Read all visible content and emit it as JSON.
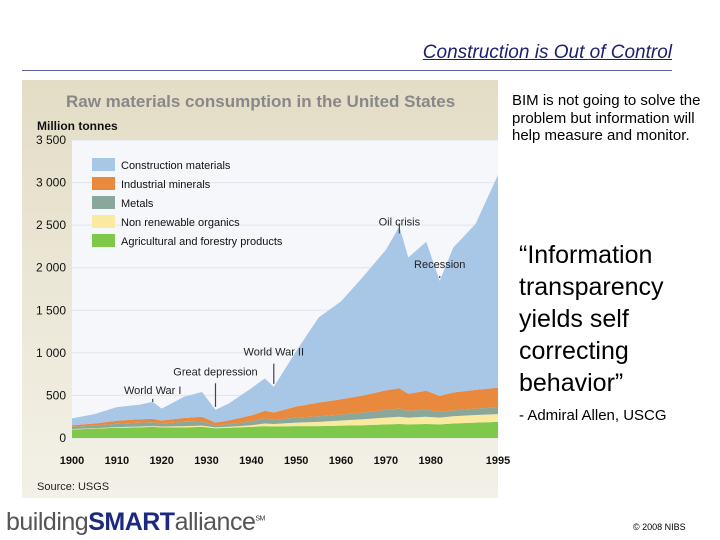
{
  "slide": {
    "title": "Construction is Out of Control",
    "bim_text": "BIM is not going to solve the problem but information will help measure and monitor.",
    "quote_lines": [
      "“Information",
      "transparency",
      "yields self",
      "correcting",
      "behavior”"
    ],
    "attribution": "- Admiral Allen, USCG",
    "logo": {
      "part1": "building",
      "part2": "SMART",
      "part3": "alliance",
      "tm": "SM"
    },
    "copyright": "© 2008 NIBS"
  },
  "chart_data": {
    "type": "area",
    "stacked": true,
    "title": "Raw materials consumption in the United States",
    "ylabel": "Million tonnes",
    "source": "Source: USGS",
    "ylim": [
      0,
      3500
    ],
    "xlim": [
      1900,
      1995
    ],
    "yticks": [
      "3 500",
      "3 000",
      "2 500",
      "2 000",
      "1 500",
      "1 000",
      "500",
      "0"
    ],
    "yticks_values": [
      3500,
      3000,
      2500,
      2000,
      1500,
      1000,
      500,
      0
    ],
    "xticks": [
      "1900",
      "1910",
      "1920",
      "1930",
      "1940",
      "1950",
      "1960",
      "1970",
      "1980",
      "1995"
    ],
    "xticks_values": [
      1900,
      1910,
      1920,
      1930,
      1940,
      1950,
      1960,
      1970,
      1980,
      1995
    ],
    "x": [
      1900,
      1905,
      1910,
      1915,
      1918,
      1920,
      1925,
      1929,
      1932,
      1935,
      1940,
      1943,
      1945,
      1950,
      1955,
      1960,
      1965,
      1970,
      1973,
      1975,
      1979,
      1982,
      1985,
      1990,
      1995
    ],
    "series": [
      {
        "name": "Agricultural and forestry products",
        "color": "#7ec84a",
        "values": [
          100,
          110,
          120,
          125,
          130,
          125,
          125,
          130,
          115,
          120,
          130,
          140,
          135,
          140,
          140,
          145,
          150,
          160,
          165,
          160,
          165,
          160,
          170,
          180,
          190
        ]
      },
      {
        "name": "Non renewable organics",
        "color": "#fbe9a0",
        "values": [
          5,
          5,
          8,
          10,
          10,
          10,
          15,
          15,
          10,
          12,
          20,
          30,
          30,
          40,
          50,
          60,
          70,
          80,
          85,
          80,
          85,
          80,
          85,
          90,
          90
        ]
      },
      {
        "name": "Metals",
        "color": "#8aa79c",
        "values": [
          25,
          30,
          40,
          45,
          45,
          35,
          50,
          50,
          20,
          30,
          45,
          60,
          50,
          60,
          65,
          70,
          80,
          90,
          95,
          80,
          85,
          65,
          70,
          75,
          80
        ]
      },
      {
        "name": "Industrial minerals",
        "color": "#e8893e",
        "values": [
          20,
          25,
          35,
          40,
          40,
          35,
          45,
          55,
          35,
          45,
          70,
          90,
          85,
          130,
          160,
          180,
          200,
          230,
          240,
          200,
          220,
          190,
          210,
          220,
          230
        ]
      },
      {
        "name": "Construction materials",
        "color": "#a8c6e6",
        "values": [
          80,
          110,
          160,
          170,
          200,
          140,
          250,
          290,
          150,
          200,
          320,
          380,
          300,
          650,
          1000,
          1150,
          1400,
          1650,
          1900,
          1600,
          1750,
          1350,
          1700,
          1950,
          2500
        ]
      }
    ],
    "annotations": [
      {
        "text": "World War I",
        "x": 1918,
        "y": 470
      },
      {
        "text": "Great depression",
        "x": 1932,
        "y": 690
      },
      {
        "text": "World War II",
        "x": 1945,
        "y": 920
      },
      {
        "text": "Oil crisis",
        "x": 1973,
        "y": 2450
      },
      {
        "text": "Recession",
        "x": 1982,
        "y": 1950
      }
    ]
  }
}
